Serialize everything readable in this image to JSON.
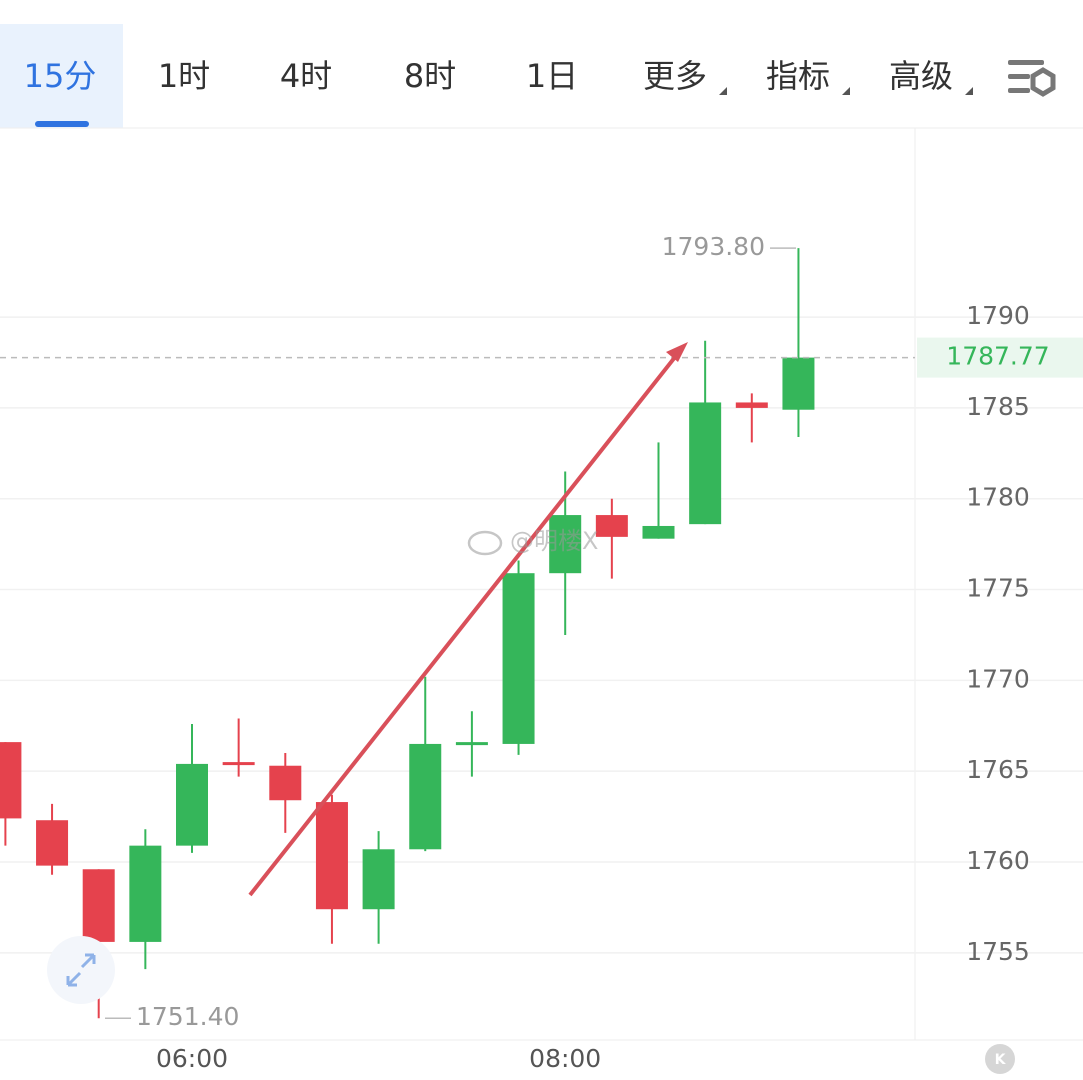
{
  "tabs": [
    "15分",
    "1时",
    "4时",
    "8时",
    "1日",
    "更多",
    "指标",
    "高级"
  ],
  "chart_data": {
    "type": "candlestick",
    "categories": [
      null,
      null,
      null,
      null,
      "06:00",
      null,
      null,
      null,
      null,
      null,
      null,
      null,
      "08:00",
      null,
      null,
      null,
      null,
      null
    ],
    "open": [
      1766.6,
      1762.3,
      1759.6,
      1755.6,
      1760.9,
      1765.5,
      1765.3,
      1763.3,
      1757.4,
      1760.7,
      1766.5,
      1766.5,
      1775.9,
      1779.1,
      1777.8,
      1778.6,
      1785.3,
      1784.9
    ],
    "high": [
      1766.6,
      1763.2,
      1759.6,
      1761.8,
      1767.6,
      1767.9,
      1766.0,
      1763.7,
      1761.7,
      1770.2,
      1768.3,
      1776.6,
      1781.5,
      1780.0,
      1783.1,
      1788.7,
      1785.8,
      1793.8
    ],
    "low": [
      1760.9,
      1759.3,
      1751.4,
      1754.1,
      1760.5,
      1764.7,
      1761.6,
      1755.5,
      1755.5,
      1760.6,
      1764.7,
      1765.9,
      1772.5,
      1775.6,
      1777.8,
      1778.6,
      1783.1,
      1783.4
    ],
    "close": [
      1762.4,
      1759.8,
      1755.6,
      1760.9,
      1765.4,
      1765.4,
      1763.4,
      1757.4,
      1760.7,
      1766.5,
      1766.6,
      1775.9,
      1779.1,
      1777.9,
      1778.5,
      1785.3,
      1785.0,
      1787.77
    ],
    "up_color": "#35b65a",
    "down_color": "#e5424d",
    "ylim": [
      1750.2,
      1800.3
    ],
    "yticks": [
      1755,
      1760,
      1765,
      1770,
      1775,
      1780,
      1785,
      1790
    ],
    "grid": true,
    "high_label": {
      "value": 1793.8,
      "label": "1793.80"
    },
    "low_label": {
      "value": 1751.4,
      "label": "1751.40"
    },
    "last_price": 1787.77,
    "watermark": "@明楼X"
  }
}
